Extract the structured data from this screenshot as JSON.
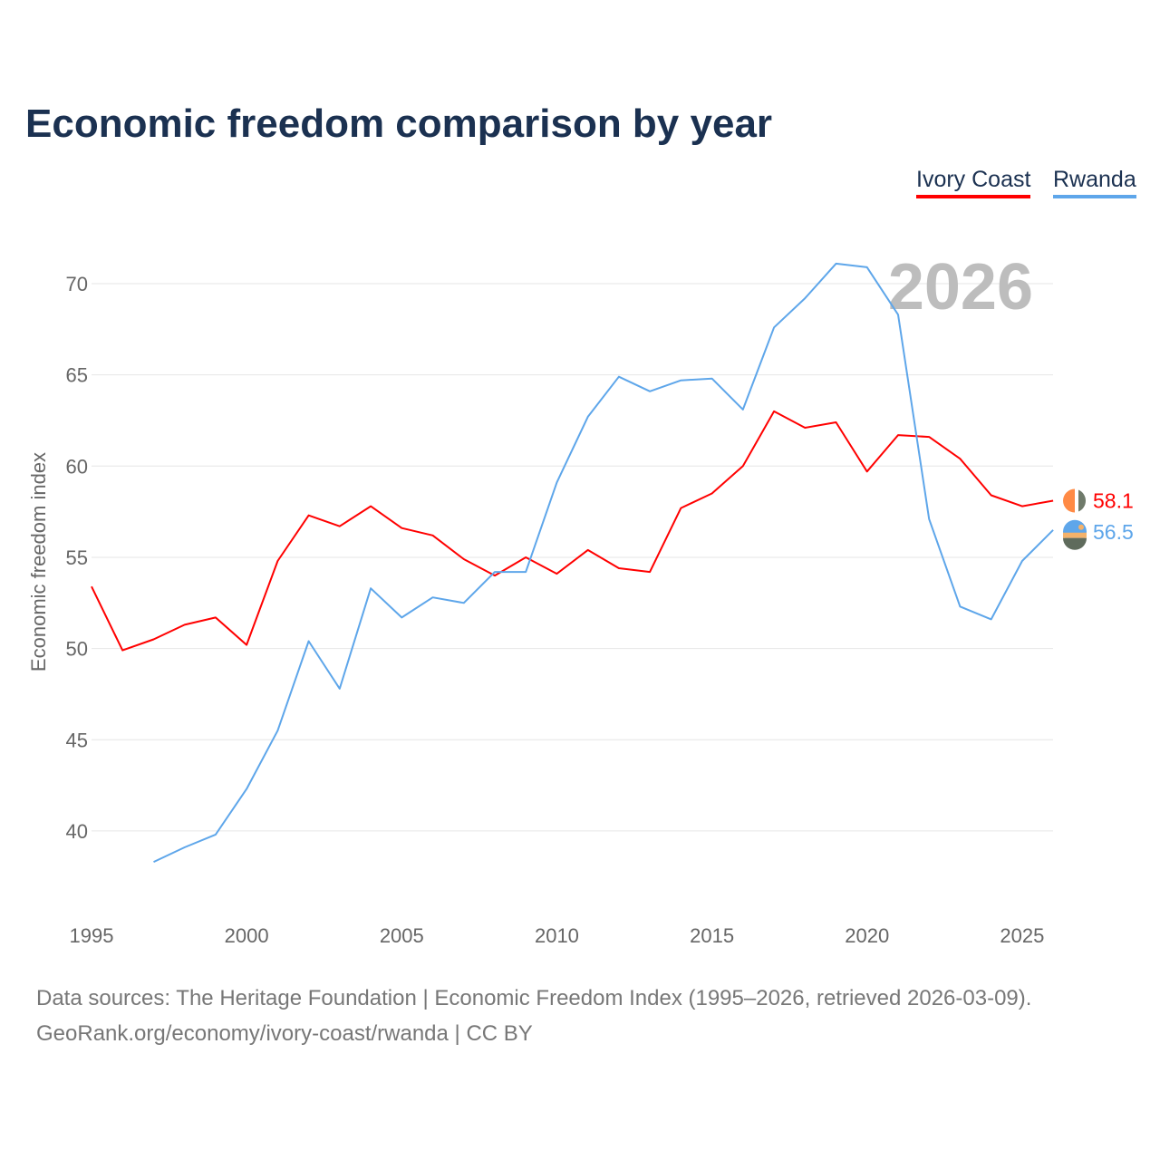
{
  "title": "Economic freedom comparison by year",
  "footer": {
    "line1": "Data sources: The Heritage Foundation | Economic Freedom Index (1995–2026, retrieved 2026-03-09).",
    "line2": "GeoRank.org/economy/ivory-coast/rwanda | CC BY"
  },
  "chart_data": {
    "type": "line",
    "title": "Economic freedom comparison by year",
    "ylabel": "Economic freedom index",
    "xlabel": "",
    "year_watermark": "2026",
    "xlim": [
      1995,
      2026
    ],
    "ylim": [
      35,
      73
    ],
    "x_ticks": [
      1995,
      2000,
      2005,
      2010,
      2015,
      2020,
      2025
    ],
    "y_ticks": [
      40,
      45,
      50,
      55,
      60,
      65,
      70
    ],
    "grid": true,
    "legend_position": "top-right",
    "series": [
      {
        "name": "Ivory Coast",
        "color": "#ff0000",
        "end_label": "58.1",
        "x": [
          1995,
          1996,
          1997,
          1998,
          1999,
          2000,
          2001,
          2002,
          2003,
          2004,
          2005,
          2006,
          2007,
          2008,
          2009,
          2010,
          2011,
          2012,
          2013,
          2014,
          2015,
          2016,
          2017,
          2018,
          2019,
          2020,
          2021,
          2022,
          2023,
          2024,
          2025,
          2026
        ],
        "values": [
          53.4,
          49.9,
          50.5,
          51.3,
          51.7,
          50.2,
          54.8,
          57.3,
          56.7,
          57.8,
          56.6,
          56.2,
          54.9,
          54.0,
          55.0,
          54.1,
          55.4,
          54.4,
          54.2,
          57.7,
          58.5,
          60.0,
          63.0,
          62.1,
          62.4,
          59.7,
          61.7,
          61.6,
          60.4,
          58.4,
          57.8,
          58.1
        ]
      },
      {
        "name": "Rwanda",
        "color": "#5ea6ea",
        "end_label": "56.5",
        "x": [
          1997,
          1998,
          1999,
          2000,
          2001,
          2002,
          2003,
          2004,
          2005,
          2006,
          2007,
          2008,
          2009,
          2010,
          2011,
          2012,
          2013,
          2014,
          2015,
          2016,
          2017,
          2018,
          2019,
          2020,
          2021,
          2022,
          2023,
          2024,
          2025,
          2026
        ],
        "values": [
          38.3,
          39.1,
          39.8,
          42.3,
          45.5,
          50.4,
          47.8,
          53.3,
          51.7,
          52.8,
          52.5,
          54.2,
          54.2,
          59.1,
          62.7,
          64.9,
          64.1,
          64.7,
          64.8,
          63.1,
          67.6,
          69.2,
          71.1,
          70.9,
          68.3,
          57.1,
          52.3,
          51.6,
          54.8,
          56.5
        ]
      }
    ]
  }
}
